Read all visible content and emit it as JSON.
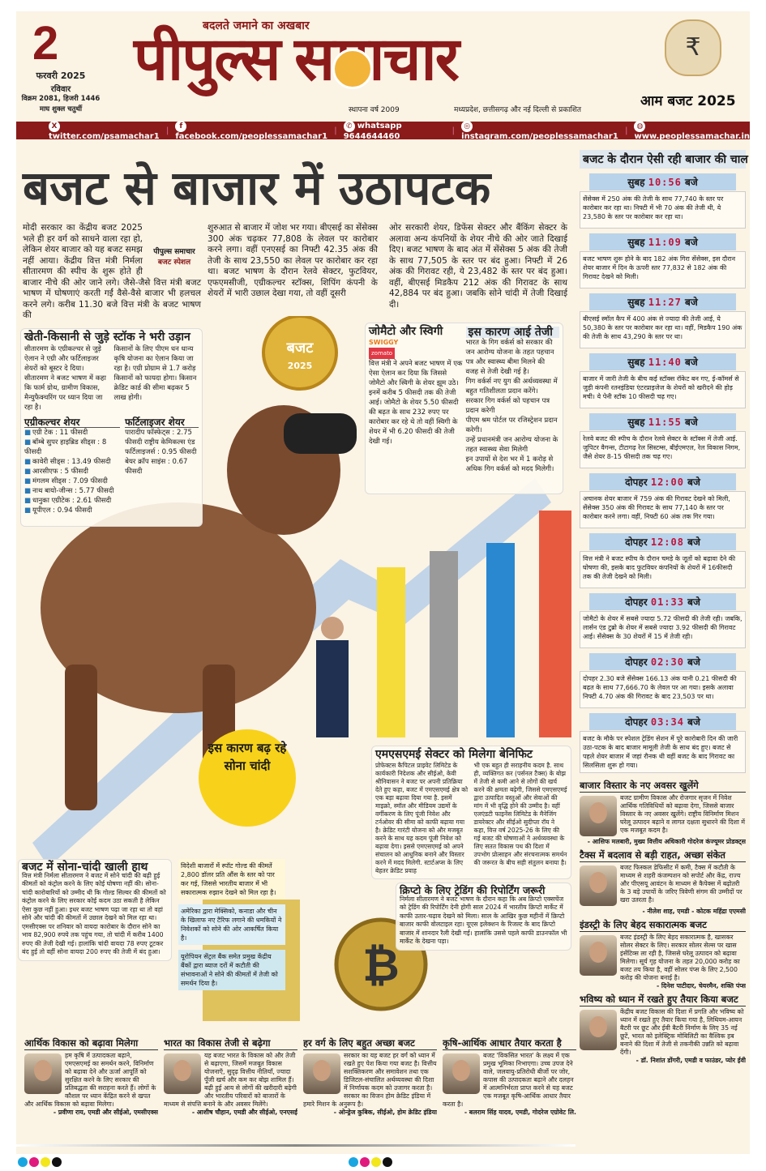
{
  "header": {
    "date_day": "2",
    "date_month": "फरवरी 2025",
    "weekday": "रविवार",
    "vikram": "विक्रम 2081, हिजरी 1446",
    "tithi": "माघ शुक्ल चतुर्थी",
    "tagline": "बदलते जमाने का अखबार",
    "masthead": "पीपुल्स समाचार",
    "founded": "स्थापना वर्ष 2009",
    "published": "मध्यप्रदेश, छत्तीसगढ़ और नई दिल्ली से प्रकाशित",
    "edition": "आम बजट 2025",
    "accent": "#8b1a1a"
  },
  "social": [
    {
      "icon": "x-icon",
      "text": "twitter.com/psamachar1"
    },
    {
      "icon": "facebook-icon",
      "text": "facebook.com/peoplessamachar1"
    },
    {
      "icon": "whatsapp-icon",
      "text": "whatsapp 9644644460"
    },
    {
      "icon": "instagram-icon",
      "text": "instagram.com/peoplessamachar1"
    },
    {
      "icon": "globe-icon",
      "text": "www.peoplessamachar.in"
    }
  ],
  "headline": "बजट से बाजार में उठापटक",
  "stamp": {
    "brand": "पीपुल्स समाचार",
    "label": "बजट स्पेशल"
  },
  "intro": [
    "मोदी सरकार का केंद्रीय बजट 2025 भले ही हर वर्ग को साधने वाला रहा हो, लेकिन शेयर बाजार को यह बजट समझ नहीं आया। केंद्रीय वित्त मंत्री निर्मला सीतारमण की स्पीच के शुरू होते ही बाजार नीचे की ओर जाने लगे। जैसे-जैसे वित्त मंत्री बजट भाषण में घोषणाएं करती गईं वैसे-वैसे बाजार भी हलचल करने लगे। करीब 11.30 बजे वित्त मंत्री के बजट भाषण की",
    "शुरुआत से बाजार में जोश भर गया। बीएसई का सेंसेक्स 300 अंक चढ़कर 77,808 के लेवल पर कारोबार करने लगा। वहीं एनएसई का निफ्टी 42.35 अंक की तेजी के साथ 23,550 का लेवल पर कारोबार कर रहा था। बजट भाषण के दौरान रेलवे सेक्टर, फुटवियर, एफएमसीजी, एग्रीकल्चर स्टॉक्स, शिपिंग कंपनी के शेयरों में भारी उछाल देखा गया, तो वहीं दूसरी",
    "ओर सरकारी शेयर, डिफेंस सेक्टर और बैंकिंग सेक्टर के अलावा अन्य कंपनियों के शेयर नीचे की ओर जाते दिखाई दिए। बजट भाषण के बाद अंत में सेंसेक्स 5 अंक की तेजी के साथ 77,505 के स्तर पर बंद हुआ। निफ्टी में 26 अंक की गिरावट रही, ये 23,482 के स्तर पर बंद हुआ। वहीं, बीएसई मिडकैप 212 अंक की गिरावट के साथ 42,884 पर बंद हुआ। जबकि सोने चांदी में तेजी दिखाई दी।"
  ],
  "agri": {
    "title": "खेती-किसानी से जुड़े स्टॉक ने भरी उड़ान",
    "text1": "सीतारमण के एग्रीकल्चर से जुड़े ऐलान ने एग्री और फर्टिलाइजर शेयरों को बूस्टर दे दिया। सीतारमण ने बजट भाषण में कहा कि फार्म ग्रोथ, ग्रामीण विकास, मैन्युफैक्चरिंग पर ध्यान दिया जा रहा है।",
    "text2": "किसानों के लिए पीएम धन धान्य कृषि योजना का ऐलान किया जा रहा है। एग्री प्रोग्राम से 1.7 करोड़ किसानों को फायदा होगा। किसान क्रेडिट कार्ड की सीमा बढ़कर 5 लाख होगी।",
    "agri_title": "एग्रीकल्चर शेयर",
    "agri_items": [
      "एग्री टेक : 11 फीसदी",
      "बॉम्बे सुपर हाइब्रिड सीड्स : 8 फीसदी",
      "कावेरी सीड्स : 13.49 फीसदी",
      "आरसीएफ : 5 फीसदी",
      "मंगलम सीड्स : 7.09 फीसदी",
      "नाथ बायो-जीन्स : 5.77 फीसदी",
      "धानुका एग्रीटेक : 2.61 फीसदी",
      "यूपीएल : 0.94 फीसदी"
    ],
    "fert_title": "फर्टिलाइजर शेयर",
    "fert_text": "पारादीप फॉस्फेट्स : 2.75 फीसदी राष्ट्रीय केमिकल्स एंड फर्टिलाइजर्स : 0.95 फीसदी बेयर क्रॉप साइंस : 0.67 फीसदी"
  },
  "badge": {
    "line1": "बजट",
    "line2": "2025"
  },
  "zomato": {
    "title": "जोमैटो और स्विगी",
    "swiggy": "SWIGGY",
    "zomato_logo": "zomato",
    "text": "वित्त मंत्री ने अपने बजट भाषण में एक ऐसा ऐलान कर दिया कि जिससे जोमैटो और स्विगी के शेयर झूम उठे। इनमें करीब 5 फीसदी तक की तेजी आई। जोमैटो के शेयर 5.50 फीसदी की बढ़त के साथ 232 रुपए पर कारोबार कर रहे थे तो वहीं स्विगी के शेयर में भी 6.20 फीसदी की तेजी देखी गई।",
    "reason_title": "इस कारण आई तेजी",
    "reasons": [
      "भारत के गिग वर्कर्स को सरकार की जन आरोग्य योजना के तहत पहचान पत्र और स्वास्थ्य बीमा मिलने की वजह से तेजी देखी गई है।",
      "गिग वर्कर्स नए युग की अर्थव्यवस्था में बहुत गतिशीलता प्रदान करेंगे।",
      "सरकार गिग वर्कर्स को पहचान पत्र प्रदान करेगी",
      "पीएम श्रम पोर्टल पर रजिस्ट्रेशन प्रदान करेगी।",
      "उन्हें प्रधानमंत्री जन आरोग्य योजना के तहत स्वास्थ्य सेवा मिलेगी",
      "इन उपायों से देश भर में 1 करोड़ से अधिक गिग वर्कर्स को मदद मिलेगी।"
    ]
  },
  "gold_bubble": "इस कारण बढ़ रहे सोना चांदी",
  "msme": {
    "title": "एमएसएमई सेक्टर को मिलेगा बेनिफिट",
    "col1": "प्रोफेक्टस कैपिटल प्राइवेट लिमिटेड के कार्यकारी निदेशक और सीईओ, केवी श्रीनिवासन ने बजट पर अपनी प्रतिक्रिया देते हुए कहा, बजट में एमएसएमई क्षेत्र को एक बड़ा बढ़ावा दिया गया है. इसमें माइक्रो, स्मॉल और मीडियम उद्यमों के वर्गीकरण के लिए पूंजी निवेश और टर्नओवर की सीमा को काफी बढ़ाया गया है। क्रेडिट गारंटी योजना को और मजबूत करने के साथ यह कदम पूंजी निवेश को बढ़ावा देगा। इससे एमएसएमई को अपने संचालन को आधुनिक बनाने और विस्तार करने में मदद मिलेगी. स्टार्टअप्स के लिए बेहतर क्रेडिट प्रवाह",
    "col2": "भी एक बहुत ही सराहनीय कदम है. साथ ही, व्यक्तिगत कर (पर्सनल टैक्स) के बोझ में तेजी से कमी आने से लोगों की खर्च करने की क्षमता बढ़ेगी, जिससे एमएसएमई द्वारा उत्पादित वस्तुओं और सेवाओं की मांग में भी वृद्धि होने की उम्मीद है। वहीं एलएंडटी फाइनेंस लिमिटेड के मैनेजिंग डायरेक्टर और सीईओ सुदीप्ता रॉय ने कहा, वित्त वर्ष 2025-26 के लिए की गई बजट की घोषणाओं ने अर्थव्यवस्था के लिए सतत विकास पथ की दिशा में उपभोग प्रोत्साहन और संरचनात्मक समर्थन की जरूरत के बीच सही संतुलन बनाया है।"
  },
  "gold": {
    "title": "बजट में सोना-चांदी खाली हाथ",
    "text": "वित्त मंत्री निर्मला सीतारमण ने बजट में सोने चांदी की बढ़ी हुई कीमतों को कंट्रोल करने के लिए कोई घोषणा नहीं की। सोना-चांदी कारोबारियों को उम्मीद थी कि गोल्ड सिल्वर की कीमतों को कंट्रोल करने के लिए सरकार कोई कदम उठा सकती है लेकिन ऐसा कुछ नहीं हुआ। इधर बजट भाषण पढ़ा जा रहा था तो वहां सोने और चांदी की कीमतों में उछाल देखने को मिल रहा था। एमसीएक्स पर शनिवार को वायदा कारोबार के दौरान सोने का भाव 82,900 रुपये तक पहुंच गया, तो चांदी में करीब 1400 रुपए की तेजी देखी गई। हालांकि चांदी वायदा 78 रुपए टूटकर बंद हुई तो वहीं सोना वायदा 200 रुपए की तेजी में बंद हुआ।",
    "notes": [
      "विदेशी बाजारों में स्पॉट गोल्ड की कीमतें 2,800 डॉलर प्रति औंस के स्तर को पार कर गई, जिससे भारतीय बाजार में भी सकारात्मक रुझान देखने को मिल रहा है।",
      "अमेरिका द्वारा मेक्सिको, कनाडा और चीन के खिलाफ नए टैरिफ लगाने की धमकियों ने निवेशकों को सोने की ओर आकर्षित किया है।",
      "यूरोपियन सेंट्रल बैंक समेत प्रमुख केंद्रीय बैंकों द्वारा ब्याज दरों में कटौती की संभावनाओं ने सोने की कीमतों में तेजी को समर्थन दिया है।"
    ]
  },
  "crypto": {
    "title": "क्रिप्टो के लिए ट्रेडिंग की रिपोर्टिंग जरूरी",
    "text": "निर्मला सीतारमण ने बजट भाषण के दौरान कहा कि अब क्रिप्टो एक्सचेंज को ट्रेडिंग की रिपोर्टिंग देनी होगी साल 2024 में भारतीय क्रिप्टो मार्केट में काफी उतार-चढ़ाव देखने को मिला। साल के आखिर कुछ महीनों में क्रिप्टो बाजार काफी वोलटाइल रहा। यूएस इलेक्शन के रिजल्ट के बाद क्रिप्टो बाजार में शानदार रैली देखी गई। हालांकि उससे पहले काफी डाउनफॉल भी मार्केट के देखना पड़ा।"
  },
  "sidebar": {
    "title": "बजट के दौरान ऐसी रही बाजार की चाल",
    "suffix": "बजे",
    "timeline": [
      {
        "period": "सुबह",
        "time": "10:56",
        "text": "सेंसेक्स में 250 अंक की तेजी के साथ 77,740 के स्तर पर कारोबार कर रहा था। निफ्टी में भी 70 अंक की तेजी थी, ये 23,580 के स्तर पर कारोबार कर रहा था।"
      },
      {
        "period": "सुबह",
        "time": "11:09",
        "text": "बजट भाषण शुरू होने के बाद 182 अंक गिरा सेंसेक्स, इस दौरान शेयर बाजार में दिन के ऊपरी स्तर 77,832 से 182 अंक की गिरावट देखने को मिली।"
      },
      {
        "period": "सुबह",
        "time": "11:27",
        "text": "बीएसई स्मॉल कैप में 400 अंक से ज्यादा की तेजी आई, ये 50,380 के स्तर पर कारोबार कर रहा था। वहीं, मिडकैप 190 अंक की तेजी के साथ 43,290 के स्तर पर था।"
      },
      {
        "period": "सुबह",
        "time": "11:40",
        "text": "बाजार में जारी तेजी के बीच कई स्टॉक्स रॉकेट बन गए, ई-कॉमर्स से जुड़ी कंपनी रतनइंडिया एंटरप्राइजेज के शेयरों को खरीदने की होड़ मची। ये पेनी स्टॉक 10 फीसदी चढ़ गए।"
      },
      {
        "period": "सुबह",
        "time": "11:55",
        "text": "रेलवे बजट की स्पीच के दौरान रेलवे सेक्टर के स्टॉक्स में तेजी आई. जुपिटर वैगन्स, टीटागढ़ रेल सिस्टम्स, बीईएमएल, रेल विकास निगम, जैसे शेयर 8-15 फीसदी तक चढ़ गए।"
      },
      {
        "period": "दोपहर",
        "time": "12:00",
        "text": "अचानक शेयर बाजार में 759 अंक की गिरावट देखने को मिली, सेंसेक्स 350 अंक की गिरावट के साथ 77,140 के स्तर पर कारोबार करने लगा। वहीं, निफ्टी 60 अंक तक गिर गया।"
      },
      {
        "period": "दोपहर",
        "time": "12:08",
        "text": "वित्त मंत्री ने बजट स्पीच के दौरान चमड़े के जूतों को बढ़ावा देने की घोषणा की, इसके बाद फुटवियर कंपनियों के शेयरों में 16फीसदी तक की तेजी देखने को मिली।"
      },
      {
        "period": "दोपहर",
        "time": "01:33",
        "text": "जोमैटो के शेयर में सबसे ज्यादा 5.72 फीसदी की तेजी रही। जबकि, लार्सन एंड टुब्रो के शेयर में सबसे ज्यादा 3.92 फीसदी की गिरावट आई। सेंसेक्स के 30 शेयरों में 15 में तेजी रही।"
      },
      {
        "period": "दोपहर",
        "time": "02:30",
        "text": "दोपहर 2.30 बजे सेंसेक्स 166.13 अंक यानी 0.21 फीसदी की बढ़त के साथ 77,666.70 के लेवल पर आ गया। इसके अलावा निफ्टी 4.70 अंक की गिरावट के बाद 23,503 पर था।"
      },
      {
        "period": "दोपहर",
        "time": "03:34",
        "text": "बजट के मौके पर स्पेशल ट्रेडिंग सेशन में पूरे कारोबारी दिन की जारी उठा-पटक के बाद बाजार मामूली तेजी के साथ बंद हुए। बजट से पहले शेयर बाजार में जहां रौनक थी वहीं बजट के बाद गिरावट का सिलसिला शुरू हो गया।"
      }
    ],
    "quotes": [
      {
        "title": "बाजार विस्तार के नए अवसर खुलेंगे",
        "text": "बजट ग्रामीण विकास और रोजगार सृजन में निवेश आर्थिक गतिविधियों को बढ़ावा देगा, जिससे बाजार विस्तार के नए अवसर खुलेंगे। राष्ट्रीय विनिर्माण मिशन घरेलू उत्पादन बढ़ाने व लागत दक्षता सुधारने की दिशा में एक मजबूत कदम है।",
        "who": "- आसिफ मलबारी, मुख्य वित्तीय अधिकारी गोदरेज कंज्यूमर प्रोडक्ट्स"
      },
      {
        "title": "टैक्स में बदलाव से बड़ी राहत, अच्छा संकेत",
        "text": "बजट फिस्कल डेफिसीट में कमी, टैक्स में कटौती के माध्यम से शहरी कंजम्पशन को सपोर्ट और केंद्र, राज्य और पीएसयू आवंटन के माध्यम से कैपेक्स में बढ़ोतरी के 3 बड़े उपायों के जरिए त्रिवेणी संगम की उम्मीदों पर खरा उतरता है।",
        "who": "- नीलेश शाह, एमडी - कोटक महिंद्रा एएमसी"
      },
      {
        "title": "इंडस्ट्री के लिए बेहद सकारात्मक बजट",
        "text": "बजट इंडस्ट्री के लिए बेहद सकारात्मक है, खासकर सोलर सेक्टर के लिए। सरकार सोलर सेल्स पर खास इंसेंटिव्स ला रही है, जिससे घरेलू उत्पादन को बढ़ावा मिलेगा। सूर्य गृह योजना के तहत 20,000 करोड़ का बजट तय किया है, वहीं सोलर पंप्स के लिए 2,500 करोड़ की योजना बनाई है।",
        "who": "- दिनेश पाटीदार, चेयरमैन, शक्ति पंप्स"
      },
      {
        "title": "भविष्य को ध्यान में रखते हुए तैयार किया बजट",
        "text": "केंद्रीय बजट विकास की दिशा में प्रगति और भविष्य को ध्यान में रखते हुए तैयार किया गया है, लिथियम-आयन बैटरी पर छूट और ईवी बैटरी निर्माण के लिए 35 नई छूटें, भारत को इलेक्ट्रिक मोबिलिटी का वैश्विक हब बनाने की दिशा में तेजी से तकनीकी उन्नति को बढ़ावा देंगी।",
        "who": "- डॉ. निशांत डोंगरी, एमडी व फाउंडर, प्योर ईवी"
      }
    ]
  },
  "bottom_quotes": [
    {
      "title": "आर्थिक विकास को बढ़ावा मिलेगा",
      "text": "हम कृषि में उत्पादकता बढ़ाने, एमएसएमई का समर्थन करने, विनिर्माण को बढ़ावा देने और ऊर्जा आपूर्ति को सुरक्षित करने के लिए सरकार की प्रतिबद्धता की सराहना करते हैं। लोगों के कौशल पर ध्यान केंद्रित करने से खपत और आर्थिक विकास को बढ़ावा मिलेगा।",
      "who": "- प्रवीणा राय, एमडी और सीईओ, एमसीएक्स"
    },
    {
      "title": "भारत का विकास तेजी से बढ़ेगा",
      "text": "यह बजट भारत के विकास को और तेजी से बढ़ाएगा, जिसमें मजबूत विकास योजनाएँ, सुदृढ़ वित्तीय नीतियाँ, ज्यादा पूँजी खर्च और कम कर बोझ शामिल हैं। बढ़ी हुई आय से लोगों की खरीदारी बढ़ेगी और भारतीय परिवारों को बाजारों के माध्यम से संपत्ति बनाने के और अवसर मिलेंगे।",
      "who": "- आशीष चौहान, एमडी और सीईओ, एनएसई"
    },
    {
      "title": "हर वर्ग के लिए बहुत अच्छा बजट",
      "text": "सरकार का यह बजट हर वर्ग को ध्यान में रखते हुए पेश किया गया बजट है। वित्तीय सशक्तिकरण और समावेशन तथा एक डिजिटल-संचालित अर्थव्यवस्था की दिशा में निर्णायक कदम को उजागर करता है। सरकार का विजन होम क्रेडिट इंडिया में हमारे मिशन के अनुरूप है।",
      "who": "- ओन्ड्रेज कुबिक, सीईओ, होम क्रेडिट इंडिया"
    },
    {
      "title": "कृषि-आर्थिक आधार तैयार करता है",
      "text": "बजट 'विकसित भारत' के लक्ष्य में एक प्रमुख भूमिका निभाएगा। उच्च उपज देने वाले, जलवायु-प्रतिरोधी बीजों पर जोर, कपास की उत्पादकता बढ़ाने और दलहन में आत्मनिर्भरता प्राप्त करने से यह बजट एक मजबूत कृषि-आर्थिक आधार तैयार करता है।",
      "who": "- बलराम सिंह यादव, एमडी, गोदरेज एग्रोवेट लि."
    }
  ]
}
